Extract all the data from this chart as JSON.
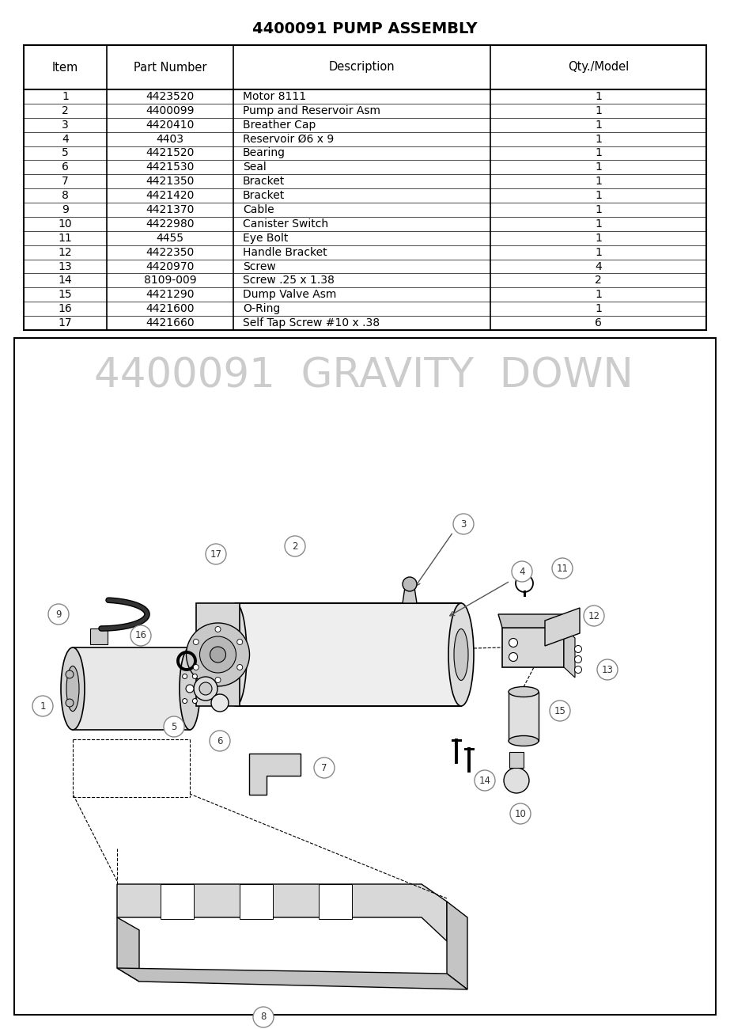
{
  "title": "4400091 PUMP ASSEMBLY",
  "table_headers": [
    "Item",
    "Part Number",
    "Description",
    "Qty./Model"
  ],
  "table_rows": [
    [
      "1",
      "4423520",
      "Motor 8111",
      "1"
    ],
    [
      "2",
      "4400099",
      "Pump and Reservoir Asm",
      "1"
    ],
    [
      "3",
      "4420410",
      "Breather Cap",
      "1"
    ],
    [
      "4",
      "4403",
      "Reservoir Ø6 x 9",
      "1"
    ],
    [
      "5",
      "4421520",
      "Bearing",
      "1"
    ],
    [
      "6",
      "4421530",
      "Seal",
      "1"
    ],
    [
      "7",
      "4421350",
      "Bracket",
      "1"
    ],
    [
      "8",
      "4421420",
      "Bracket",
      "1"
    ],
    [
      "9",
      "4421370",
      "Cable",
      "1"
    ],
    [
      "10",
      "4422980",
      "Canister Switch",
      "1"
    ],
    [
      "11",
      "4455",
      "Eye Bolt",
      "1"
    ],
    [
      "12",
      "4422350",
      "Handle Bracket",
      "1"
    ],
    [
      "13",
      "4420970",
      "Screw",
      "4"
    ],
    [
      "14",
      "8109-009",
      "Screw .25 x 1.38",
      "2"
    ],
    [
      "15",
      "4421290",
      "Dump Valve Asm",
      "1"
    ],
    [
      "16",
      "4421600",
      "O-Ring",
      "1"
    ],
    [
      "17",
      "4421660",
      "Self Tap Screw #10 x .38",
      "6"
    ]
  ],
  "diagram_title": "4400091  GRAVITY  DOWN",
  "bg_color": "#ffffff"
}
